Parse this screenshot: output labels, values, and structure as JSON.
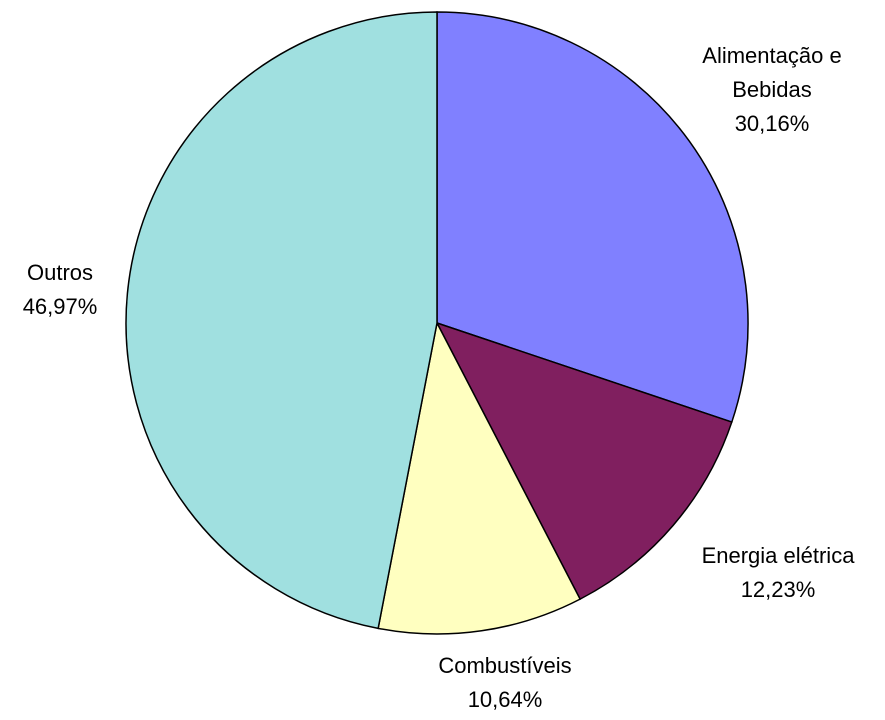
{
  "chart_data": {
    "type": "pie",
    "categories": [
      "Alimentação e Bebidas",
      "Energia elétrica",
      "Combustíveis",
      "Outros"
    ],
    "values": [
      30.16,
      12.23,
      10.64,
      46.97
    ],
    "value_labels": [
      "30,16%",
      "12,23%",
      "10,64%",
      "46,97%"
    ],
    "colors": [
      "#8080ff",
      "#801f5f",
      "#ffffc0",
      "#a0e0e0"
    ]
  }
}
